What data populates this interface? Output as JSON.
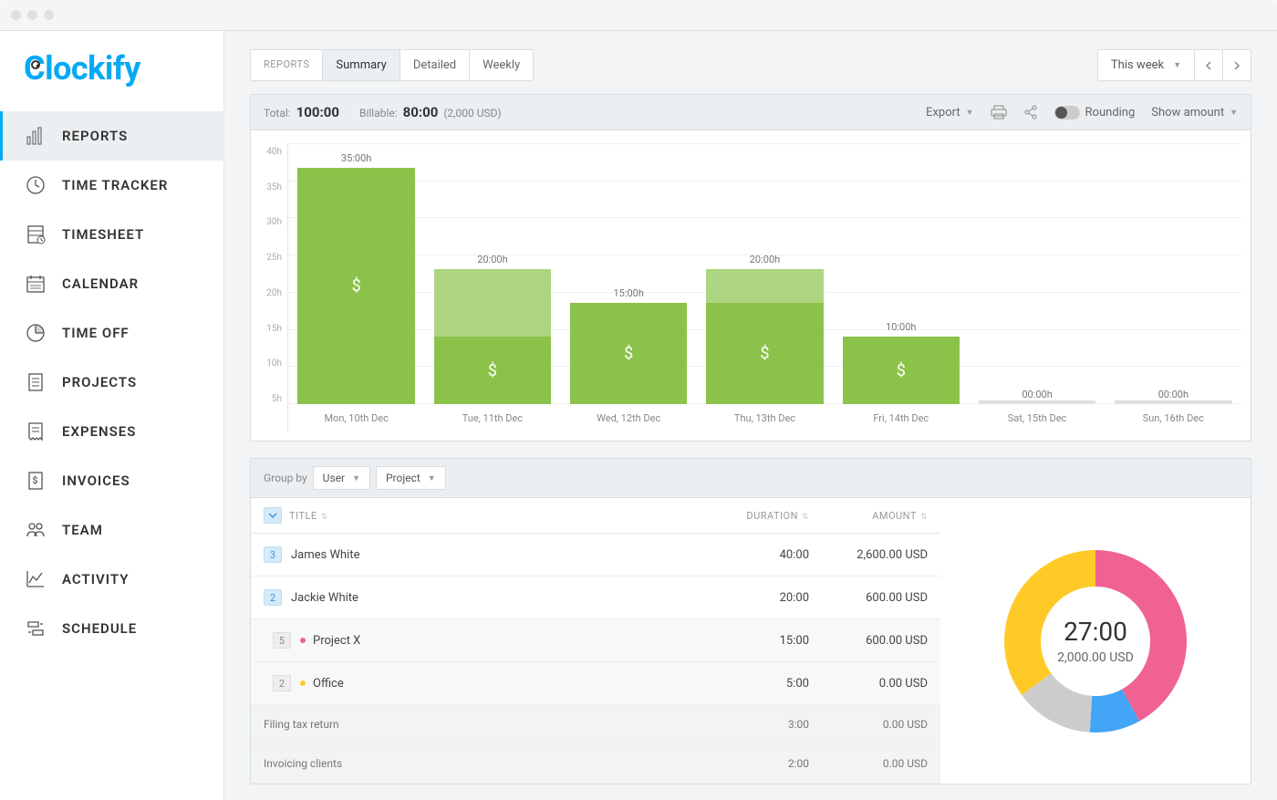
{
  "logo": "Clockify",
  "sidebar": {
    "items": [
      {
        "label": "REPORTS",
        "icon": "bar-chart",
        "active": true
      },
      {
        "label": "TIME TRACKER",
        "icon": "clock",
        "active": false
      },
      {
        "label": "TIMESHEET",
        "icon": "sheet",
        "active": false
      },
      {
        "label": "CALENDAR",
        "icon": "calendar",
        "active": false
      },
      {
        "label": "TIME OFF",
        "icon": "clock-quarter",
        "active": false
      },
      {
        "label": "PROJECTS",
        "icon": "document",
        "active": false
      },
      {
        "label": "EXPENSES",
        "icon": "receipt",
        "active": false
      },
      {
        "label": "INVOICES",
        "icon": "invoice",
        "active": false
      },
      {
        "label": "TEAM",
        "icon": "people",
        "active": false
      },
      {
        "label": "ACTIVITY",
        "icon": "activity",
        "active": false
      },
      {
        "label": "SCHEDULE",
        "icon": "schedule",
        "active": false
      }
    ]
  },
  "tabs": {
    "label": "REPORTS",
    "items": [
      "Summary",
      "Detailed",
      "Weekly"
    ],
    "active": "Summary"
  },
  "dateRange": "This week",
  "summary": {
    "totalLabel": "Total:",
    "totalValue": "100:00",
    "billableLabel": "Billable:",
    "billableValue": "80:00",
    "billableAmount": "(2,000 USD)",
    "exportLabel": "Export",
    "roundingLabel": "Rounding",
    "showAmountLabel": "Show amount"
  },
  "chart": {
    "type": "bar",
    "yTicks": [
      "40h",
      "35h",
      "30h",
      "25h",
      "20h",
      "15h",
      "10h",
      "5h"
    ],
    "yMax": 40,
    "barLightColor": "#aed581",
    "barDarkColor": "#8bc34a",
    "emptyColor": "#e0e0e0",
    "bars": [
      {
        "label": "Mon, 10th Dec",
        "topLabel": "35:00h",
        "total": 35,
        "billable": 35,
        "dollar": true
      },
      {
        "label": "Tue, 11th Dec",
        "topLabel": "20:00h",
        "total": 20,
        "billable": 10,
        "dollar": true
      },
      {
        "label": "Wed, 12th Dec",
        "topLabel": "15:00h",
        "total": 15,
        "billable": 15,
        "dollar": true
      },
      {
        "label": "Thu, 13th Dec",
        "topLabel": "20:00h",
        "total": 20,
        "billable": 15,
        "dollar": true
      },
      {
        "label": "Fri, 14th Dec",
        "topLabel": "10:00h",
        "total": 10,
        "billable": 10,
        "dollar": true
      },
      {
        "label": "Sat, 15th Dec",
        "topLabel": "00:00h",
        "total": 0,
        "billable": 0,
        "dollar": false
      },
      {
        "label": "Sun, 16th Dec",
        "topLabel": "00:00h",
        "total": 0,
        "billable": 0,
        "dollar": false
      }
    ]
  },
  "groupBy": {
    "label": "Group by",
    "primary": "User",
    "secondary": "Project"
  },
  "table": {
    "headers": {
      "title": "TITLE",
      "duration": "DURATION",
      "amount": "AMOUNT"
    },
    "rows": [
      {
        "type": "user",
        "count": "3",
        "title": "James White",
        "duration": "40:00",
        "amount": "2,600.00 USD"
      },
      {
        "type": "user",
        "count": "2",
        "title": "Jackie White",
        "duration": "20:00",
        "amount": "600.00 USD"
      },
      {
        "type": "project",
        "count": "5",
        "title": "Project X",
        "dot": "#f06292",
        "duration": "15:00",
        "amount": "600.00 USD"
      },
      {
        "type": "project",
        "count": "2",
        "title": "Office",
        "dot": "#ffca28",
        "duration": "5:00",
        "amount": "0.00 USD"
      },
      {
        "type": "task",
        "title": "Filing tax return",
        "duration": "3:00",
        "amount": "0.00 USD"
      },
      {
        "type": "task",
        "title": "Invoicing clients",
        "duration": "2:00",
        "amount": "0.00 USD"
      }
    ]
  },
  "donut": {
    "time": "27:00",
    "amount": "2,000.00 USD",
    "slices": [
      {
        "color": "#f06292",
        "pct": 42
      },
      {
        "color": "#42a5f5",
        "pct": 9
      },
      {
        "color": "#cccccc",
        "pct": 14
      },
      {
        "color": "#ffca28",
        "pct": 35
      }
    ],
    "innerRadius": 60,
    "outerRadius": 100
  }
}
